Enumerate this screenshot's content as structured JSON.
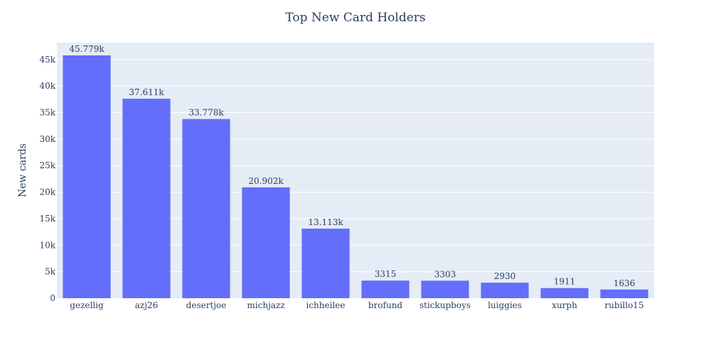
{
  "chart_data": {
    "type": "bar",
    "title": "Top New Card Holders",
    "xlabel": "",
    "ylabel": "New cards",
    "categories": [
      "gezellig",
      "azj26",
      "desertjoe",
      "michjazz",
      "ichheilee",
      "brofund",
      "stickupboys",
      "luiggies",
      "xurph",
      "rubillo15"
    ],
    "values": [
      45779,
      37611,
      33778,
      20902,
      13113,
      3315,
      3303,
      2930,
      1911,
      1636
    ],
    "data_labels": [
      "45.779k",
      "37.611k",
      "33.778k",
      "20.902k",
      "13.113k",
      "3315",
      "3303",
      "2930",
      "1911",
      "1636"
    ],
    "ylim": [
      0,
      48189
    ],
    "yticks": [
      0,
      5000,
      10000,
      15000,
      20000,
      25000,
      30000,
      35000,
      40000,
      45000
    ],
    "ytick_labels": [
      "0",
      "5k",
      "10k",
      "15k",
      "20k",
      "25k",
      "30k",
      "35k",
      "40k",
      "45k"
    ],
    "grid": true,
    "bar_color": "#636efa",
    "plot_bg": "#e5ecf6",
    "grid_color": "#ffffff"
  }
}
